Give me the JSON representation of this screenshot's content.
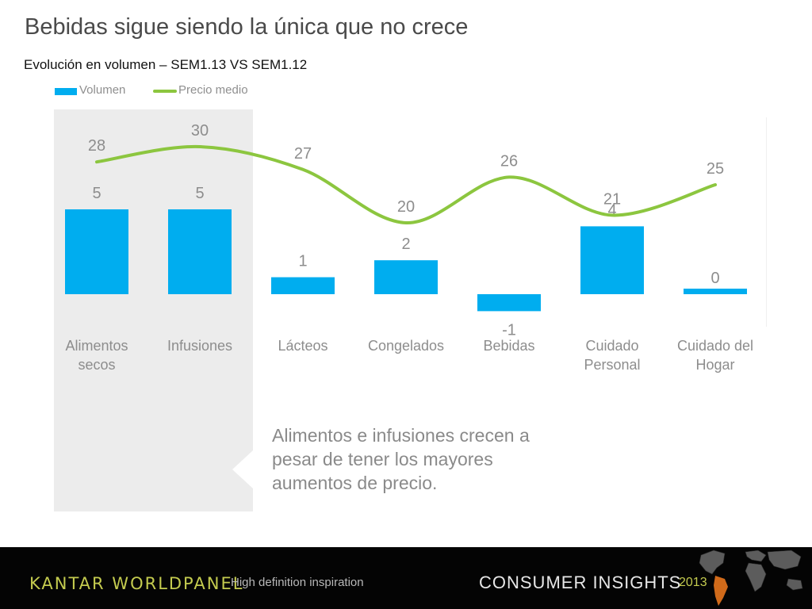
{
  "slide": {
    "title": "Bebidas sigue siendo la única que no crece",
    "subtitle": "Evolución en volumen – SEM1.13 VS SEM1.12",
    "callout": "Alimentos e infusiones crecen a pesar de tener los mayores aumentos de precio."
  },
  "footer": {
    "brand": "KANTAR WORLDPANEL",
    "tagline": "High definition inspiration",
    "insights": "CONSUMER INSIGHTS",
    "year": "2013",
    "map_icon": "world-map-icon"
  },
  "colors": {
    "bar": "#00adef",
    "line": "#8cc63f",
    "label": "#8d8d8d",
    "panel": "#ececec"
  },
  "chart_data": {
    "type": "bar",
    "title": "",
    "xlabel": "",
    "ylabel": "",
    "categories": [
      [
        "Alimentos",
        "secos"
      ],
      [
        "Infusiones"
      ],
      [
        "Lácteos"
      ],
      [
        "Congelados"
      ],
      [
        "Bebidas"
      ],
      [
        "Cuidado",
        "Personal"
      ],
      [
        "Cuidado del",
        "Hogar"
      ]
    ],
    "series": [
      {
        "name": "Volumen",
        "kind": "bar",
        "values": [
          5,
          5,
          1,
          2,
          -1,
          4,
          0
        ]
      },
      {
        "name": "Precio medio",
        "kind": "line",
        "smooth": true,
        "values": [
          28,
          30,
          27,
          20,
          26,
          21,
          25
        ]
      }
    ],
    "legend": "top-left",
    "grid": false,
    "highlighted_categories": [
      "Alimentos secos",
      "Infusiones"
    ]
  }
}
